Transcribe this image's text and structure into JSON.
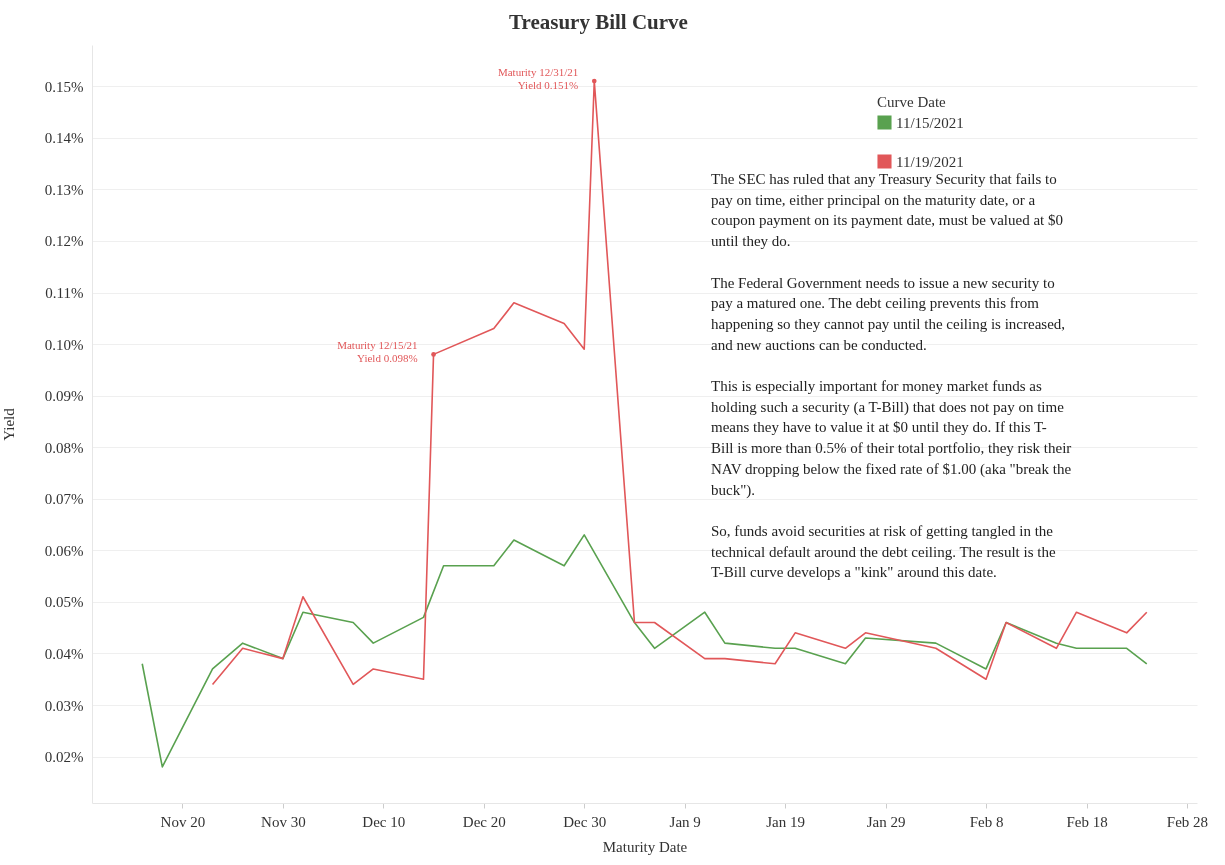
{
  "chart_data": {
    "type": "line",
    "title": "Treasury Bill Curve",
    "xlabel": "Maturity Date",
    "ylabel": "Yield",
    "legend_title": "Curve Date",
    "legend": "top right",
    "grid": "y",
    "xlim": [
      "2021-11-11",
      "2022-03-01"
    ],
    "xticks": [
      {
        "value": "2021-11-20",
        "label": "Nov 20"
      },
      {
        "value": "2021-11-30",
        "label": "Nov 30"
      },
      {
        "value": "2021-12-10",
        "label": "Dec 10"
      },
      {
        "value": "2021-12-20",
        "label": "Dec 20"
      },
      {
        "value": "2021-12-30",
        "label": "Dec 30"
      },
      {
        "value": "2022-01-09",
        "label": "Jan 9"
      },
      {
        "value": "2022-01-19",
        "label": "Jan 19"
      },
      {
        "value": "2022-01-29",
        "label": "Jan 29"
      },
      {
        "value": "2022-02-08",
        "label": "Feb 8"
      },
      {
        "value": "2022-02-18",
        "label": "Feb 18"
      },
      {
        "value": "2022-02-28",
        "label": "Feb 28"
      }
    ],
    "ylim": [
      0.011,
      0.158
    ],
    "yticks": [
      {
        "value": 0.02,
        "label": "0.02%"
      },
      {
        "value": 0.03,
        "label": "0.03%"
      },
      {
        "value": 0.04,
        "label": "0.04%"
      },
      {
        "value": 0.05,
        "label": "0.05%"
      },
      {
        "value": 0.06,
        "label": "0.06%"
      },
      {
        "value": 0.07,
        "label": "0.07%"
      },
      {
        "value": 0.08,
        "label": "0.08%"
      },
      {
        "value": 0.09,
        "label": "0.09%"
      },
      {
        "value": 0.1,
        "label": "0.10%"
      },
      {
        "value": 0.11,
        "label": "0.11%"
      },
      {
        "value": 0.12,
        "label": "0.12%"
      },
      {
        "value": 0.13,
        "label": "0.13%"
      },
      {
        "value": 0.14,
        "label": "0.14%"
      },
      {
        "value": 0.15,
        "label": "0.15%"
      }
    ],
    "series": [
      {
        "name": "11/15/2021",
        "color": "#59a14f",
        "x": [
          "2021-11-16",
          "2021-11-18",
          "2021-11-23",
          "2021-11-26",
          "2021-11-30",
          "2021-12-02",
          "2021-12-07",
          "2021-12-09",
          "2021-12-14",
          "2021-12-16",
          "2021-12-21",
          "2021-12-23",
          "2021-12-28",
          "2021-12-30",
          "2022-01-04",
          "2022-01-06",
          "2022-01-11",
          "2022-01-13",
          "2022-01-18",
          "2022-01-20",
          "2022-01-25",
          "2022-01-27",
          "2022-02-03",
          "2022-02-08",
          "2022-02-10",
          "2022-02-15",
          "2022-02-17",
          "2022-02-22",
          "2022-02-24"
        ],
        "values": [
          0.038,
          0.018,
          0.037,
          0.042,
          0.039,
          0.048,
          0.046,
          0.042,
          0.047,
          0.057,
          0.057,
          0.062,
          0.057,
          0.063,
          0.046,
          0.041,
          0.048,
          0.042,
          0.041,
          0.041,
          0.038,
          0.043,
          0.042,
          0.037,
          0.046,
          0.042,
          0.041,
          0.041,
          0.038
        ]
      },
      {
        "name": "11/19/2021",
        "color": "#e15759",
        "x": [
          "2021-11-23",
          "2021-11-26",
          "2021-11-30",
          "2021-12-02",
          "2021-12-07",
          "2021-12-09",
          "2021-12-14",
          "2021-12-15",
          "2021-12-21",
          "2021-12-23",
          "2021-12-28",
          "2021-12-30",
          "2021-12-31",
          "2022-01-04",
          "2022-01-06",
          "2022-01-11",
          "2022-01-13",
          "2022-01-18",
          "2022-01-20",
          "2022-01-25",
          "2022-01-27",
          "2022-02-03",
          "2022-02-08",
          "2022-02-10",
          "2022-02-15",
          "2022-02-17",
          "2022-02-22",
          "2022-02-24"
        ],
        "values": [
          0.034,
          0.041,
          0.039,
          0.051,
          0.034,
          0.037,
          0.035,
          0.098,
          0.103,
          0.108,
          0.104,
          0.099,
          0.151,
          0.046,
          0.046,
          0.039,
          0.039,
          0.038,
          0.044,
          0.041,
          0.044,
          0.041,
          0.035,
          0.046,
          0.041,
          0.048,
          0.044,
          0.048
        ]
      }
    ],
    "annotations": [
      {
        "text": "Maturity 12/15/21\nYield 0.098%",
        "x": "2021-12-15",
        "y": 0.098
      },
      {
        "text": "Maturity 12/31/21\nYield 0.151%",
        "x": "2021-12-31",
        "y": 0.151
      },
      "The SEC has ruled that any Treasury Security that fails to\npay on time, either principal on the maturity date, or a\ncoupon payment on its payment date, must be valued at $0\nuntil they do.",
      "The Federal Government needs to issue a new security to\npay a matured one.  The debt ceiling prevents this from\nhappening so they cannot pay until the ceiling is increased,\nand new auctions can be conducted.",
      "This is especially important for money market funds as\nholding such a security (a T-Bill) that does not pay on time\nmeans they have to value it at $0 until they do. If this T-\nBill is more than 0.5% of their total portfolio, they risk their\nNAV dropping below the fixed rate of $1.00 (aka \"break the\nbuck\").",
      "So, funds avoid securities at risk of getting tangled in the\ntechnical default around the debt ceiling. The result is the\nT-Bill curve develops a \"kink\" around this date."
    ]
  }
}
